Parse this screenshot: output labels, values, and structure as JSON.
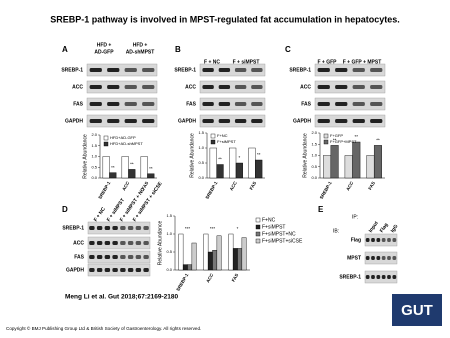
{
  "title": "SREBP-1 pathway is involved in MPST-regulated fat accumulation in hepatocytes.",
  "panels": [
    {
      "label": "A",
      "columns": [
        [
          "HFD +",
          "AD-GFP"
        ],
        [
          "HFD +",
          "AD-shMPST"
        ]
      ],
      "rows": [
        "SREBP-1",
        "ACC",
        "FAS",
        "GAPDH"
      ],
      "chart": {
        "type": "bar",
        "ylabel": "Relative Abundance",
        "categories": [
          "SREBP-1",
          "ACC",
          "FAS"
        ],
        "series": [
          {
            "name": "HFD+AD-GFP",
            "color": "#ffffff",
            "values": [
              1.0,
              1.0,
              1.0
            ]
          },
          {
            "name": "HFD+AD-shMPST",
            "color": "#333333",
            "values": [
              0.25,
              0.4,
              0.2
            ]
          }
        ],
        "annotations": [
          "**",
          "**",
          "**"
        ],
        "ylim": [
          0,
          2
        ],
        "yticks": [
          {
            "value": 0,
            "label": "0.0"
          },
          {
            "value": 0.5,
            "label": "0.5"
          },
          {
            "value": 1,
            "label": "1.0"
          },
          {
            "value": 1.5,
            "label": "1.5"
          },
          {
            "value": 2,
            "label": "2.0"
          }
        ]
      }
    },
    {
      "label": "B",
      "columns": [
        [
          "F + NC"
        ],
        [
          "F + siMPST"
        ]
      ],
      "rows": [
        "SREBP-1",
        "ACC",
        "FAS",
        "GAPDH"
      ],
      "chart": {
        "type": "bar",
        "ylabel": "Relative Abundance",
        "categories": [
          "SREBP-1",
          "ACC",
          "FAS"
        ],
        "series": [
          {
            "name": "F+NC",
            "color": "#ffffff",
            "values": [
              1.0,
              1.0,
              1.0
            ]
          },
          {
            "name": "F+siMPST",
            "color": "#333333",
            "values": [
              0.45,
              0.5,
              0.6
            ]
          }
        ],
        "annotations": [
          "**",
          "*",
          "**"
        ],
        "ylim": [
          0,
          1.5
        ],
        "yticks": [
          {
            "value": 0,
            "label": "0.0"
          },
          {
            "value": 0.5,
            "label": "0.5"
          },
          {
            "value": 1,
            "label": "1.0"
          },
          {
            "value": 1.5,
            "label": "1.5"
          }
        ]
      }
    },
    {
      "label": "C",
      "columns": [
        [
          "F + GFP"
        ],
        [
          "F + GFP + MPST"
        ]
      ],
      "rows": [
        "SREBP-1",
        "ACC",
        "FAS",
        "GAPDH"
      ],
      "chart": {
        "type": "bar",
        "ylabel": "Relative Abundance",
        "categories": [
          "SREBP-1",
          "ACC",
          "FAS"
        ],
        "series": [
          {
            "name": "F+GFP",
            "color": "#dddddd",
            "values": [
              1.0,
              1.0,
              1.0
            ]
          },
          {
            "name": "F+GFP+MPST",
            "color": "#666666",
            "values": [
              1.45,
              1.6,
              1.45
            ]
          }
        ],
        "annotations": [
          "**",
          "**",
          "**"
        ],
        "ylim": [
          0,
          2
        ],
        "yticks": [
          {
            "value": 0,
            "label": "0.0"
          },
          {
            "value": 0.5,
            "label": "0.5"
          },
          {
            "value": 1,
            "label": "1.0"
          },
          {
            "value": 1.5,
            "label": "1.5"
          },
          {
            "value": 2,
            "label": "2.0"
          }
        ]
      }
    },
    {
      "label": "D",
      "columns": [
        [
          "F + NC"
        ],
        [
          "F + siMPST"
        ],
        [
          "F + siMPST + NC"
        ],
        [
          "F + siMPST + siCSE"
        ]
      ],
      "rows": [
        "SREBP-1",
        "ACC",
        "FAS",
        "GAPDH"
      ],
      "chart": {
        "type": "bar",
        "ylabel": "Relative Abundance",
        "categories": [
          "SREBP-1",
          "ACC",
          "FAS"
        ],
        "series": [
          {
            "name": "F+NC",
            "color": "#ffffff",
            "values": [
              1.0,
              1.0,
              1.0
            ]
          },
          {
            "name": "F+siMPST",
            "color": "#222222",
            "values": [
              0.15,
              0.5,
              0.6
            ]
          },
          {
            "name": "F+siMPST+NC",
            "color": "#777777",
            "values": [
              0.15,
              0.55,
              0.6
            ]
          },
          {
            "name": "F+siMPST+siCSE",
            "color": "#cccccc",
            "values": [
              0.75,
              0.95,
              0.9
            ]
          }
        ],
        "annotations": [
          "***",
          "***",
          "*"
        ],
        "ylim": [
          0,
          1.5
        ],
        "yticks": [
          {
            "value": 0,
            "label": "0.0"
          },
          {
            "value": 0.5,
            "label": "0.5"
          },
          {
            "value": 1,
            "label": "1.0"
          },
          {
            "value": 1.5,
            "label": "1.5"
          }
        ]
      }
    },
    {
      "label": "E",
      "ip": "IP:",
      "ib": "IB:",
      "columns": [
        [
          "Input"
        ],
        [
          "Flag"
        ],
        [
          "IgG"
        ]
      ],
      "rows": [
        "Flag",
        "MPST",
        "SREBP-1"
      ]
    }
  ],
  "citation": "Meng Li et al. Gut 2018;67:2169-2180",
  "copyright": "Copyright © BMJ Publishing Group Ltd & British Society of Gastroenterology. All rights reserved.",
  "logo": "GUT"
}
